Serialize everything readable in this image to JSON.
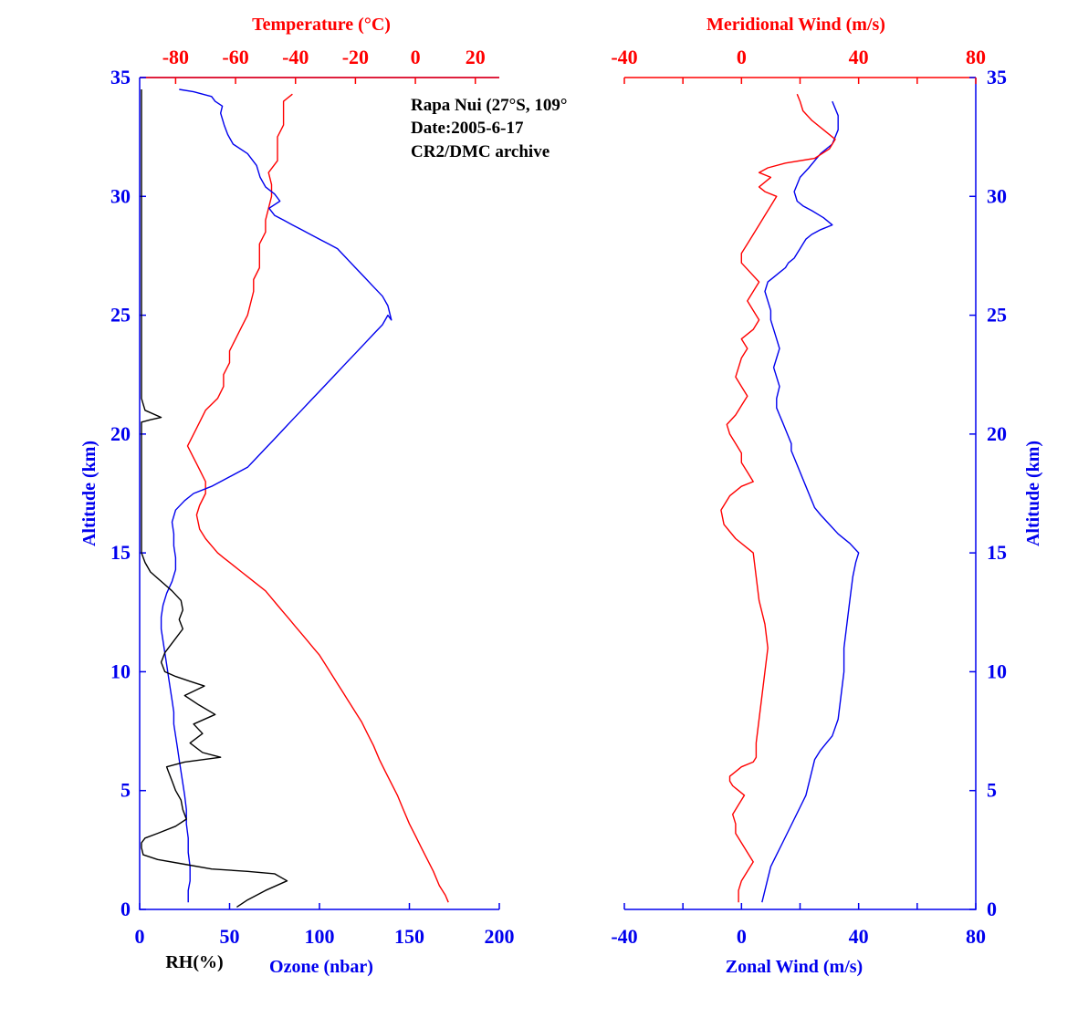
{
  "annotation": {
    "line1": "Rapa Nui (27°S, 109°",
    "line2": "Date:2005-6-17",
    "line3": "CR2/DMC archive"
  },
  "colors": {
    "red": "#ff0000",
    "blue": "#0000ee",
    "black": "#000000"
  },
  "chart_data": [
    {
      "type": "line",
      "panel": "left",
      "title": "",
      "ylabel": "Altitude (km)",
      "ylim": [
        0,
        35
      ],
      "yticks": [
        0,
        5,
        10,
        15,
        20,
        25,
        30,
        35
      ],
      "ytick_labels": [
        "0",
        "5",
        "10",
        "15",
        "20",
        "25",
        "30",
        "35"
      ],
      "bottom_axis": {
        "labels": [
          "RH(%)",
          "Ozone (nbar)"
        ],
        "lim": [
          0,
          200
        ],
        "ticks": [
          0,
          50,
          100,
          150,
          200
        ],
        "tick_labels": [
          "0",
          "50",
          "100",
          "150",
          "200"
        ]
      },
      "top_axis": {
        "label": "Temperature (°C)",
        "lim": [
          -92,
          28
        ],
        "ticks": [
          -80,
          -60,
          -40,
          -20,
          0,
          20
        ],
        "tick_labels": [
          "-80",
          "-60",
          "-40",
          "-20",
          "0",
          "20"
        ]
      },
      "grid": false,
      "series": [
        {
          "axis": "top",
          "color": "#ff0000",
          "x": [
            11,
            10,
            8,
            6,
            4,
            2,
            0,
            -2,
            -4,
            -6,
            -8,
            -10,
            -12,
            -14,
            -16,
            -18,
            -20,
            -22,
            -24,
            -26,
            -28,
            -30,
            -32,
            -34,
            -36,
            -38,
            -40,
            -42,
            -44,
            -46,
            -48,
            -50,
            -52,
            -54,
            -56,
            -58,
            -60,
            -62,
            -64,
            -66,
            -68,
            -70,
            -72,
            -73,
            -72,
            -70,
            -70,
            -72,
            -74,
            -76,
            -74,
            -72,
            -70,
            -66,
            -64,
            -64,
            -62,
            -62,
            -60,
            -58,
            -56,
            -55,
            -54,
            -54,
            -52,
            -52,
            -52,
            -50,
            -50,
            -49,
            -48,
            -48,
            -49,
            -46,
            -46,
            -46,
            -44,
            -44,
            -44,
            -41
          ],
          "y": [
            0.3,
            0.6,
            1.0,
            1.6,
            2.1,
            2.6,
            3.1,
            3.6,
            4.2,
            4.8,
            5.3,
            5.8,
            6.3,
            6.9,
            7.4,
            7.9,
            8.3,
            8.7,
            9.1,
            9.5,
            9.9,
            10.3,
            10.7,
            11.0,
            11.3,
            11.6,
            11.9,
            12.2,
            12.5,
            12.8,
            13.1,
            13.4,
            13.6,
            13.8,
            14.0,
            14.2,
            14.4,
            14.6,
            14.8,
            15.0,
            15.3,
            15.6,
            16.0,
            16.6,
            17.0,
            17.5,
            18.0,
            18.5,
            19.0,
            19.5,
            20.0,
            20.5,
            21.0,
            21.5,
            22.0,
            22.5,
            23.0,
            23.5,
            24.0,
            24.5,
            25.0,
            25.5,
            26.0,
            26.5,
            27.0,
            27.5,
            28.0,
            28.5,
            29.0,
            29.5,
            30.0,
            30.5,
            31.0,
            31.5,
            32.0,
            32.5,
            33.0,
            33.5,
            34.0,
            34.3
          ]
        },
        {
          "axis": "bottom",
          "color": "#0000ee",
          "x": [
            27,
            27,
            28,
            28,
            27,
            27,
            26,
            26,
            25,
            24,
            23,
            22,
            21,
            20,
            19,
            19,
            18,
            17,
            16,
            15,
            14,
            13,
            12,
            12,
            13,
            15,
            18,
            20,
            20,
            19,
            19,
            18,
            20,
            25,
            30,
            40,
            50,
            60,
            65,
            70,
            75,
            80,
            85,
            90,
            95,
            100,
            105,
            110,
            115,
            120,
            125,
            130,
            135,
            138,
            140,
            138,
            135,
            130,
            125,
            120,
            115,
            110,
            105,
            100,
            95,
            90,
            85,
            80,
            75,
            72,
            78,
            75,
            70,
            67,
            65,
            60,
            52,
            49,
            47,
            45,
            46,
            42,
            40,
            35,
            30,
            22
          ],
          "y": [
            0.3,
            0.8,
            1.2,
            1.8,
            2.4,
            3.0,
            3.6,
            4.2,
            4.8,
            5.3,
            5.8,
            6.3,
            6.8,
            7.3,
            7.8,
            8.3,
            8.8,
            9.3,
            9.8,
            10.3,
            10.8,
            11.3,
            11.8,
            12.3,
            12.8,
            13.3,
            13.8,
            14.3,
            14.8,
            15.3,
            15.8,
            16.3,
            16.8,
            17.2,
            17.5,
            17.8,
            18.2,
            18.6,
            19.0,
            19.4,
            19.8,
            20.2,
            20.6,
            21.0,
            21.4,
            21.8,
            22.2,
            22.6,
            23.0,
            23.4,
            23.8,
            24.2,
            24.6,
            25.0,
            24.8,
            25.4,
            25.8,
            26.2,
            26.6,
            27.0,
            27.4,
            27.8,
            28.0,
            28.2,
            28.4,
            28.6,
            28.8,
            29.0,
            29.2,
            29.5,
            29.8,
            30.1,
            30.4,
            30.8,
            31.3,
            31.8,
            32.2,
            32.6,
            33.0,
            33.5,
            33.8,
            34.0,
            34.2,
            34.3,
            34.4,
            34.5
          ]
        },
        {
          "axis": "bottom",
          "color": "#000000",
          "x": [
            54,
            60,
            70,
            82,
            75,
            60,
            40,
            25,
            10,
            2,
            1,
            1,
            3,
            10,
            20,
            26,
            24,
            23,
            20,
            18,
            16,
            15,
            25,
            45,
            35,
            28,
            35,
            30,
            42,
            33,
            25,
            36,
            28,
            20,
            14,
            12,
            14,
            20,
            24,
            22,
            24,
            23,
            18,
            12,
            6,
            3,
            1,
            1,
            1,
            1,
            1,
            1,
            1,
            1,
            1,
            1,
            1,
            6,
            12,
            3,
            1,
            1,
            1,
            1,
            1,
            1,
            1,
            1,
            1,
            1,
            1,
            1
          ],
          "y": [
            0.1,
            0.4,
            0.8,
            1.2,
            1.5,
            1.6,
            1.7,
            1.9,
            2.1,
            2.3,
            2.6,
            2.8,
            3.0,
            3.2,
            3.5,
            3.8,
            4.2,
            4.6,
            5.0,
            5.4,
            5.8,
            6.0,
            6.2,
            6.4,
            6.6,
            7.0,
            7.4,
            7.8,
            8.2,
            8.6,
            9.0,
            9.4,
            9.6,
            9.8,
            10.0,
            10.4,
            10.8,
            11.4,
            11.8,
            12.2,
            12.6,
            13.0,
            13.4,
            13.8,
            14.2,
            14.6,
            15.0,
            16.0,
            17.0,
            18.0,
            19.0,
            19.5,
            19.8,
            20.0,
            20.2,
            20.4,
            20.5,
            20.6,
            20.7,
            21.0,
            21.5,
            22.0,
            24.0,
            26.0,
            28.0,
            30.0,
            31.0,
            32.0,
            33.0,
            33.5,
            34.0,
            34.5
          ]
        }
      ]
    },
    {
      "type": "line",
      "panel": "right",
      "title": "",
      "ylabel": "Altitude (km)",
      "ylim": [
        0,
        35
      ],
      "yticks": [
        0,
        5,
        10,
        15,
        20,
        25,
        30,
        35
      ],
      "ytick_labels": [
        "0",
        "5",
        "10",
        "15",
        "20",
        "25",
        "30",
        "35"
      ],
      "bottom_axis": {
        "label": "Zonal Wind (m/s)",
        "lim": [
          -40,
          80
        ],
        "ticks": [
          -40,
          0,
          40,
          80
        ],
        "tick_labels": [
          "-40",
          "0",
          "40",
          "80"
        ]
      },
      "top_axis": {
        "label": "Meridional Wind (m/s)",
        "lim": [
          -40,
          80
        ],
        "ticks": [
          -40,
          0,
          40,
          80
        ],
        "tick_labels": [
          "-40",
          "0",
          "40",
          "80"
        ]
      },
      "grid": false,
      "series": [
        {
          "axis": "bottom",
          "color": "#0000ee",
          "x": [
            7,
            8,
            9,
            10,
            12,
            14,
            16,
            18,
            20,
            22,
            23,
            24,
            25,
            27,
            29,
            31,
            33,
            34,
            35,
            35,
            36,
            37,
            38,
            39,
            40,
            37,
            33,
            30,
            27,
            25,
            24,
            23,
            22,
            21,
            20,
            19,
            18,
            17,
            17,
            16,
            15,
            14,
            13,
            12,
            12,
            13,
            12,
            11,
            12,
            13,
            12,
            11,
            10,
            10,
            9,
            8,
            9,
            11,
            13,
            15,
            16,
            18,
            19,
            20,
            21,
            22,
            24,
            27,
            31,
            28,
            24,
            21,
            19,
            18,
            20,
            23,
            27,
            31,
            33,
            33,
            31
          ],
          "y": [
            0.3,
            0.8,
            1.3,
            1.8,
            2.3,
            2.8,
            3.3,
            3.8,
            4.3,
            4.8,
            5.3,
            5.8,
            6.3,
            6.7,
            7.0,
            7.3,
            8.0,
            9.0,
            10.0,
            11.0,
            12.0,
            13.0,
            14.0,
            14.6,
            15.0,
            15.4,
            15.8,
            16.2,
            16.6,
            16.9,
            17.2,
            17.5,
            17.8,
            18.1,
            18.4,
            18.7,
            19.0,
            19.3,
            19.6,
            19.9,
            20.2,
            20.5,
            20.8,
            21.1,
            21.5,
            22.0,
            22.4,
            22.8,
            23.2,
            23.6,
            24.0,
            24.4,
            24.8,
            25.2,
            25.6,
            26.0,
            26.4,
            26.6,
            26.8,
            27.0,
            27.2,
            27.4,
            27.6,
            27.8,
            28.0,
            28.2,
            28.4,
            28.6,
            28.8,
            29.1,
            29.4,
            29.6,
            29.8,
            30.2,
            30.8,
            31.2,
            31.8,
            32.2,
            32.8,
            33.4,
            34.0
          ]
        },
        {
          "axis": "top",
          "color": "#ff0000",
          "x": [
            -1,
            -1,
            0,
            2,
            4,
            2,
            0,
            -2,
            -2,
            -3,
            -1,
            1,
            -1,
            -3,
            -4,
            -4,
            -2,
            0,
            4,
            5,
            5,
            6,
            7,
            8,
            9,
            8,
            6,
            5,
            4,
            2,
            -2,
            -6,
            -7,
            -4,
            0,
            4,
            2,
            0,
            0,
            -2,
            -4,
            -5,
            -2,
            0,
            2,
            0,
            -2,
            -1,
            0,
            2,
            0,
            4,
            6,
            4,
            2,
            4,
            6,
            3,
            0,
            0,
            2,
            4,
            6,
            8,
            10,
            12,
            8,
            6,
            8,
            10,
            6,
            9,
            15,
            25,
            30,
            32,
            28,
            24,
            21,
            20,
            19
          ],
          "y": [
            0.3,
            0.8,
            1.2,
            1.6,
            2.0,
            2.4,
            2.8,
            3.2,
            3.6,
            4.0,
            4.4,
            4.8,
            5.0,
            5.2,
            5.4,
            5.6,
            5.8,
            6.0,
            6.2,
            6.4,
            7.0,
            8.0,
            9.0,
            10.0,
            11.0,
            12.0,
            13.0,
            14.0,
            15.0,
            15.2,
            15.6,
            16.2,
            16.8,
            17.4,
            17.8,
            18.0,
            18.4,
            18.8,
            19.2,
            19.6,
            20.0,
            20.4,
            20.8,
            21.2,
            21.6,
            22.0,
            22.4,
            22.8,
            23.2,
            23.6,
            24.0,
            24.4,
            24.8,
            25.2,
            25.6,
            26.0,
            26.4,
            26.8,
            27.2,
            27.6,
            28.0,
            28.4,
            28.8,
            29.2,
            29.6,
            30.0,
            30.2,
            30.4,
            30.6,
            30.8,
            31.0,
            31.2,
            31.4,
            31.6,
            32.0,
            32.4,
            32.8,
            33.2,
            33.6,
            34.0,
            34.3
          ]
        }
      ]
    }
  ]
}
